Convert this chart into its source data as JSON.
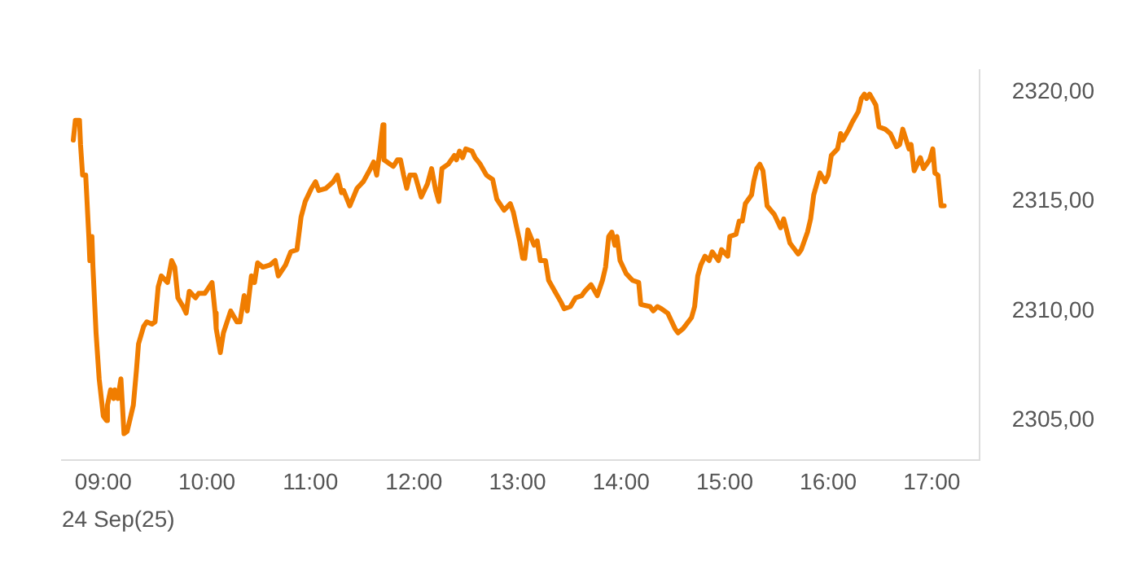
{
  "chart_data": {
    "type": "line",
    "xlabel": "24 Sep(25)",
    "x": [
      8.71,
      8.73,
      8.77,
      8.78,
      8.8,
      8.83,
      8.86,
      8.87,
      8.89,
      8.9,
      8.93,
      8.96,
      9.0,
      9.03,
      9.04,
      9.07,
      9.1,
      9.11,
      9.14,
      9.17,
      9.2,
      9.23,
      9.26,
      9.29,
      9.32,
      9.34,
      9.39,
      9.42,
      9.47,
      9.5,
      9.53,
      9.56,
      9.62,
      9.66,
      9.69,
      9.72,
      9.77,
      9.8,
      9.83,
      9.89,
      9.92,
      9.98,
      10.05,
      10.08,
      10.09,
      10.13,
      10.16,
      10.23,
      10.29,
      10.32,
      10.36,
      10.39,
      10.43,
      10.46,
      10.49,
      10.54,
      10.61,
      10.66,
      10.69,
      10.76,
      10.81,
      10.87,
      10.91,
      10.95,
      11.01,
      11.05,
      11.08,
      11.15,
      11.22,
      11.26,
      11.3,
      11.32,
      11.38,
      11.45,
      11.51,
      11.58,
      11.61,
      11.64,
      11.67,
      11.7,
      11.71,
      11.8,
      11.84,
      11.87,
      11.9,
      11.93,
      11.96,
      12.01,
      12.07,
      12.13,
      12.17,
      12.21,
      12.24,
      12.27,
      12.33,
      12.39,
      12.41,
      12.44,
      12.47,
      12.5,
      12.56,
      12.59,
      12.64,
      12.7,
      12.76,
      12.8,
      12.87,
      12.93,
      12.96,
      13.02,
      13.05,
      13.07,
      13.1,
      13.16,
      13.19,
      13.22,
      13.27,
      13.3,
      13.36,
      13.42,
      13.45,
      13.51,
      13.56,
      13.62,
      13.65,
      13.71,
      13.77,
      13.82,
      13.85,
      13.88,
      13.91,
      13.94,
      13.96,
      13.99,
      14.05,
      14.11,
      14.17,
      14.19,
      14.28,
      14.31,
      14.35,
      14.39,
      14.45,
      14.52,
      14.55,
      14.6,
      14.68,
      14.71,
      14.74,
      14.77,
      14.81,
      14.85,
      14.88,
      14.94,
      14.97,
      15.03,
      15.05,
      15.11,
      15.14,
      15.17,
      15.2,
      15.26,
      15.28,
      15.31,
      15.34,
      15.37,
      15.41,
      15.48,
      15.54,
      15.57,
      15.63,
      15.71,
      15.74,
      15.8,
      15.83,
      15.86,
      15.92,
      15.97,
      16.0,
      16.03,
      16.09,
      16.12,
      16.14,
      16.2,
      16.23,
      16.29,
      16.32,
      16.35,
      16.37,
      16.4,
      16.46,
      16.49,
      16.55,
      16.6,
      16.66,
      16.69,
      16.72,
      16.78,
      16.8,
      16.83,
      16.89,
      16.92,
      16.98,
      17.01,
      17.03,
      17.06,
      17.09,
      17.12
    ],
    "series": [
      {
        "color": "#f07d00",
        "values": [
          2317.8,
          2318.7,
          2318.7,
          2317.6,
          2316.2,
          2316.2,
          2313.4,
          2312.3,
          2313.4,
          2312.0,
          2309.0,
          2306.9,
          2305.2,
          2305.0,
          2305.7,
          2306.4,
          2306.0,
          2306.4,
          2306.0,
          2306.9,
          2304.4,
          2304.5,
          2305.1,
          2305.7,
          2307.3,
          2308.5,
          2309.3,
          2309.5,
          2309.4,
          2309.5,
          2311.1,
          2311.6,
          2311.3,
          2312.3,
          2312.0,
          2310.6,
          2310.2,
          2309.9,
          2310.9,
          2310.6,
          2310.8,
          2310.8,
          2311.3,
          2309.9,
          2309.2,
          2308.1,
          2309.0,
          2310.0,
          2309.5,
          2309.5,
          2310.7,
          2310.0,
          2311.6,
          2311.3,
          2312.2,
          2312.0,
          2312.1,
          2312.3,
          2311.6,
          2312.1,
          2312.7,
          2312.8,
          2314.3,
          2315.0,
          2315.6,
          2315.9,
          2315.5,
          2315.6,
          2315.9,
          2316.2,
          2315.4,
          2315.5,
          2314.8,
          2315.6,
          2315.9,
          2316.5,
          2316.8,
          2316.2,
          2317.3,
          2318.5,
          2316.9,
          2316.6,
          2316.9,
          2316.9,
          2316.2,
          2315.6,
          2316.2,
          2316.2,
          2315.2,
          2315.8,
          2316.5,
          2315.5,
          2315.0,
          2316.5,
          2316.7,
          2317.1,
          2316.9,
          2317.3,
          2317.0,
          2317.4,
          2317.3,
          2317.0,
          2316.7,
          2316.2,
          2316.0,
          2315.1,
          2314.6,
          2314.9,
          2314.5,
          2313.2,
          2312.4,
          2312.4,
          2313.7,
          2313.0,
          2313.2,
          2312.3,
          2312.3,
          2311.4,
          2310.9,
          2310.4,
          2310.1,
          2310.2,
          2310.6,
          2310.7,
          2310.9,
          2311.2,
          2310.7,
          2311.4,
          2312.0,
          2313.4,
          2313.6,
          2313.0,
          2313.4,
          2312.3,
          2311.7,
          2311.4,
          2311.3,
          2310.3,
          2310.2,
          2310.0,
          2310.2,
          2310.1,
          2309.9,
          2309.2,
          2309.0,
          2309.2,
          2309.7,
          2310.2,
          2311.6,
          2312.1,
          2312.5,
          2312.3,
          2312.7,
          2312.3,
          2312.8,
          2312.5,
          2313.4,
          2313.5,
          2314.1,
          2314.1,
          2314.9,
          2315.3,
          2315.9,
          2316.5,
          2316.7,
          2316.4,
          2314.8,
          2314.4,
          2313.8,
          2314.2,
          2313.1,
          2312.6,
          2312.8,
          2313.6,
          2314.2,
          2315.3,
          2316.3,
          2315.9,
          2316.2,
          2317.1,
          2317.4,
          2318.1,
          2317.8,
          2318.3,
          2318.6,
          2319.1,
          2319.7,
          2319.9,
          2319.7,
          2319.9,
          2319.4,
          2318.4,
          2318.3,
          2318.1,
          2317.5,
          2317.6,
          2318.3,
          2317.4,
          2317.6,
          2316.4,
          2317.0,
          2316.5,
          2316.9,
          2317.4,
          2316.3,
          2316.2,
          2314.8,
          2314.8
        ]
      }
    ],
    "xlim": [
      8.6,
      17.46
    ],
    "xticks": [
      {
        "value": 9,
        "label": "09:00"
      },
      {
        "value": 10,
        "label": "10:00"
      },
      {
        "value": 11,
        "label": "11:00"
      },
      {
        "value": 12,
        "label": "12:00"
      },
      {
        "value": 13,
        "label": "13:00"
      },
      {
        "value": 14,
        "label": "14:00"
      },
      {
        "value": 15,
        "label": "15:00"
      },
      {
        "value": 16,
        "label": "16:00"
      },
      {
        "value": 17,
        "label": "17:00"
      }
    ],
    "ylim": [
      2303.2,
      2321
    ],
    "yticks": [
      {
        "value": 2305,
        "label": "2305,00"
      },
      {
        "value": 2310,
        "label": "2310,00"
      },
      {
        "value": 2315,
        "label": "2315,00"
      },
      {
        "value": 2320,
        "label": "2320,00"
      }
    ],
    "grid": false,
    "legend": false,
    "marker": "none",
    "line_style": "solid"
  }
}
